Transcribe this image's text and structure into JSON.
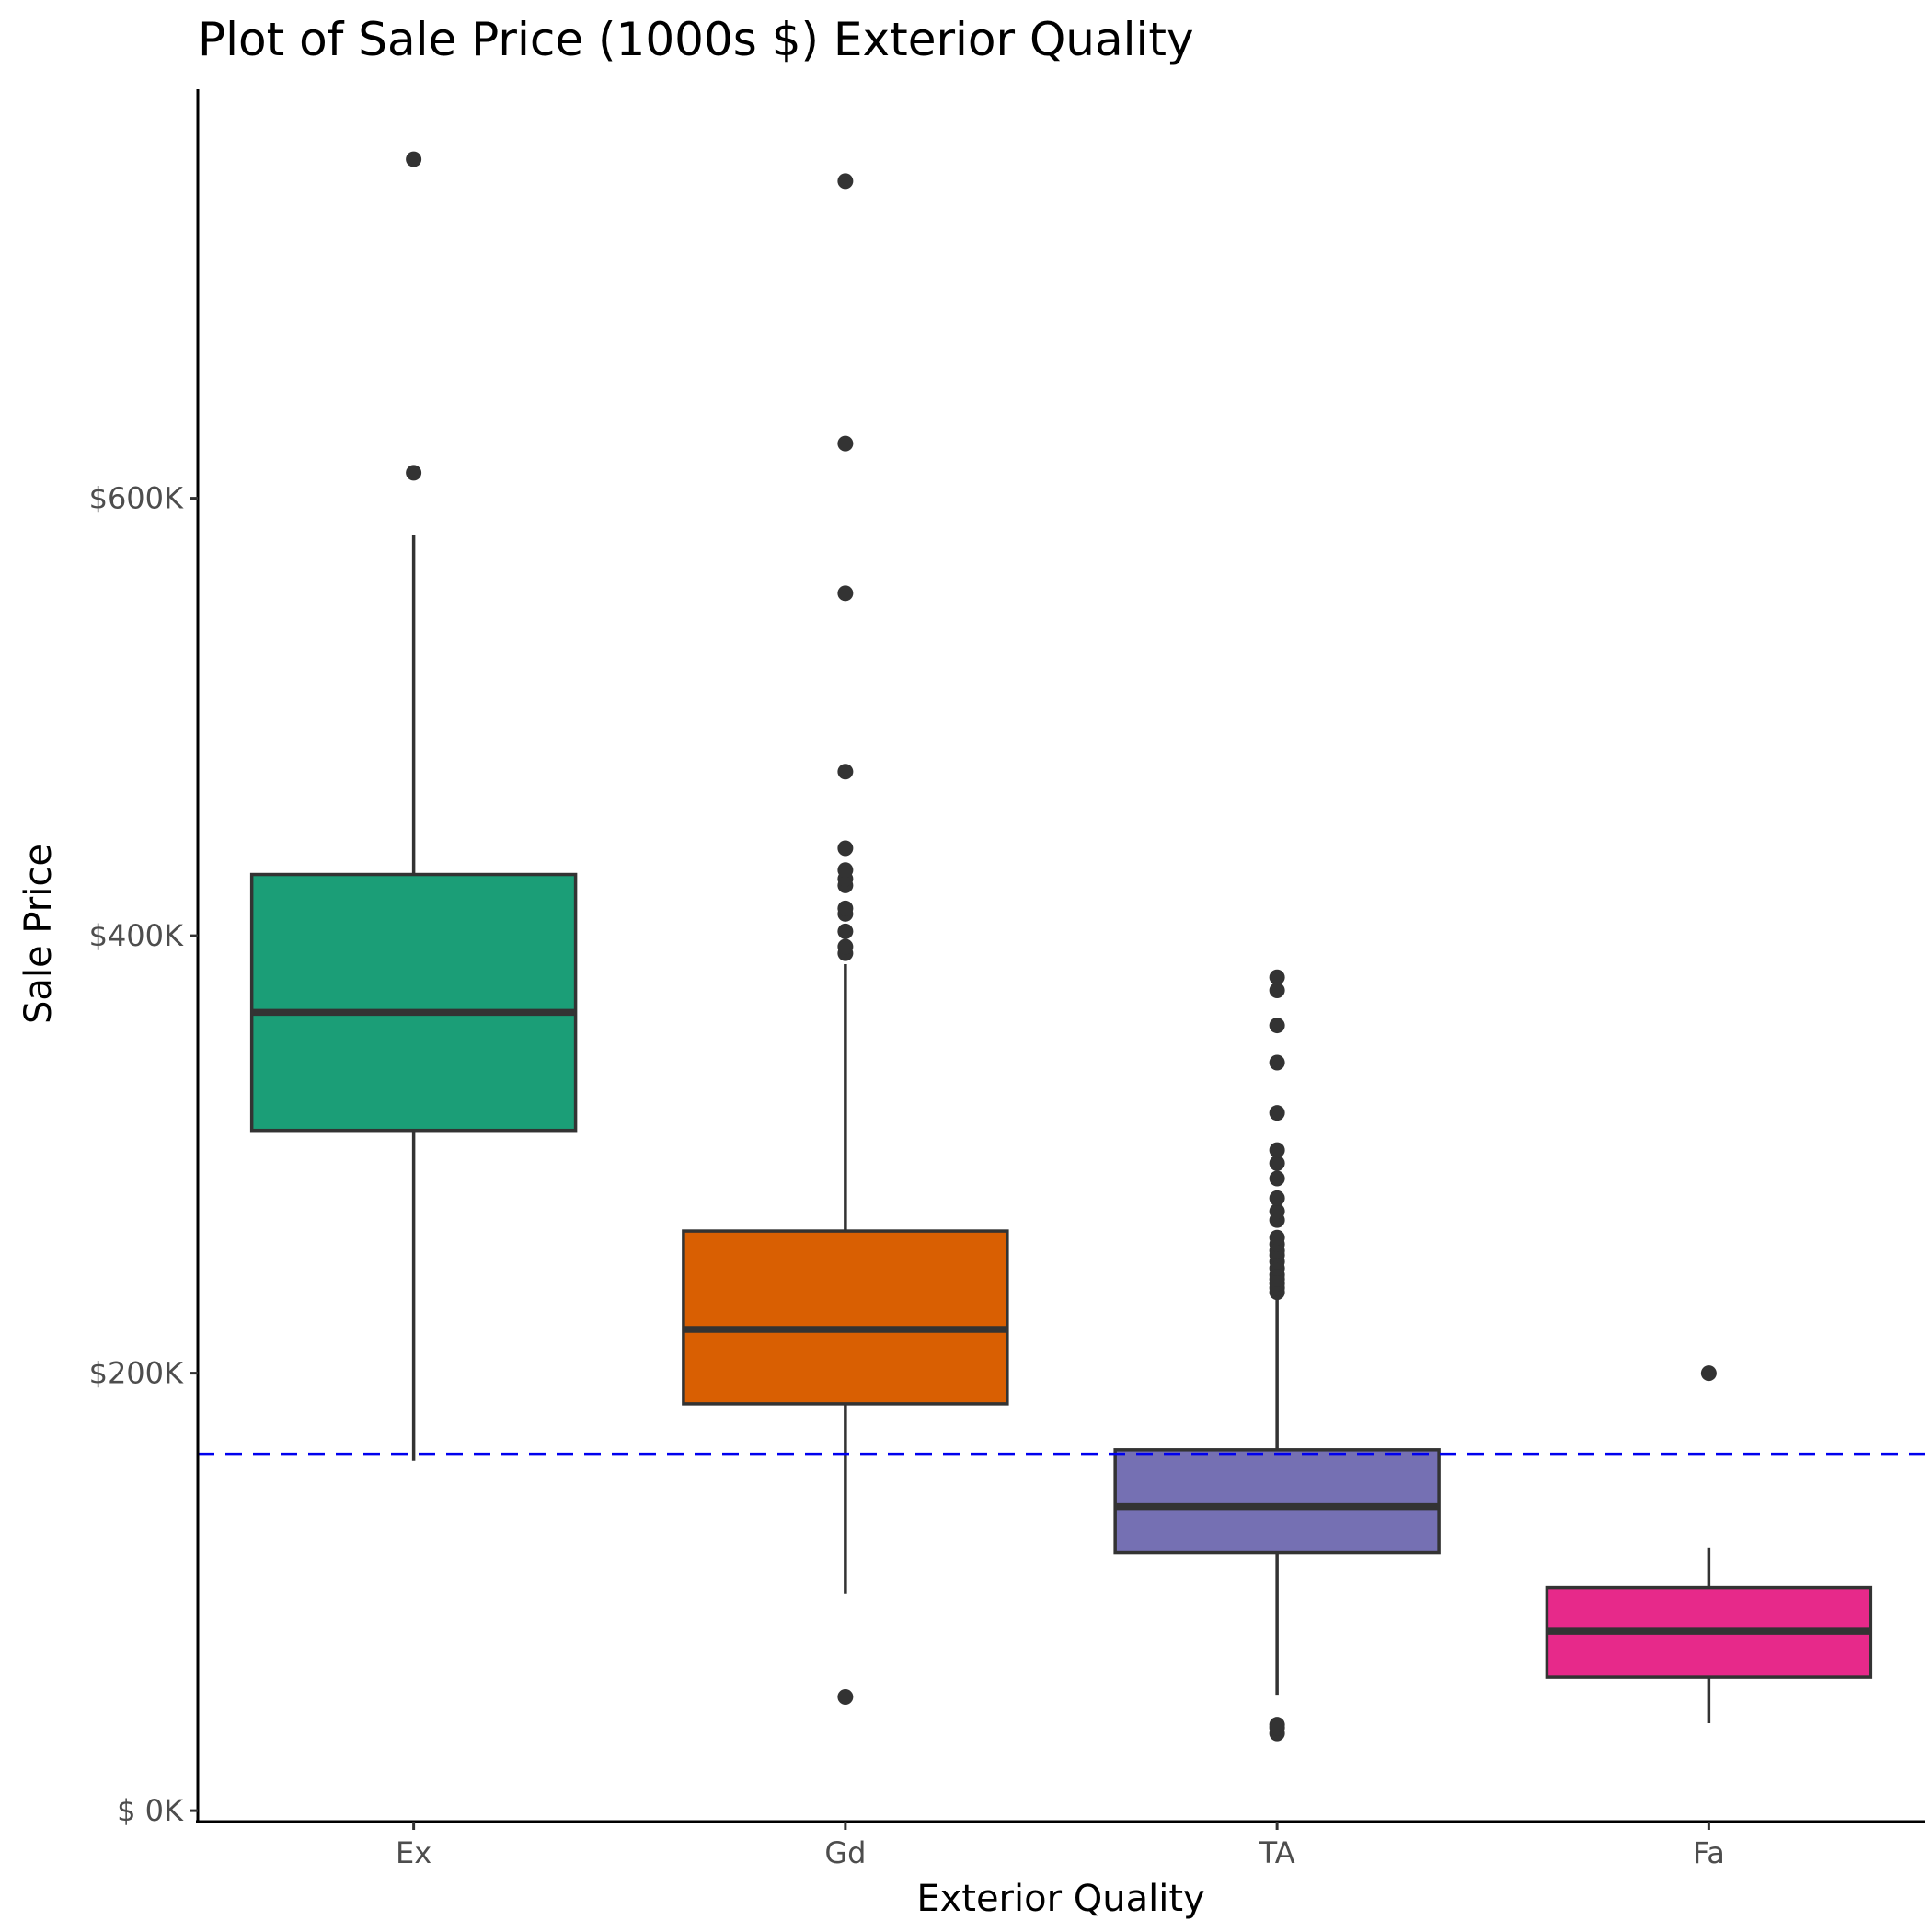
{
  "chart_data": {
    "type": "box",
    "title": "Plot of Sale Price (1000s $) Exterior Quality",
    "xlabel": "Exterior Quality",
    "ylabel": "Sale Price",
    "ylim": [
      -5000,
      787000
    ],
    "y_ticks": [
      {
        "value": 0,
        "label": "$  0K"
      },
      {
        "value": 200000,
        "label": "$200K"
      },
      {
        "value": 400000,
        "label": "$400K"
      },
      {
        "value": 600000,
        "label": "$600K"
      }
    ],
    "grid": false,
    "reference_line": {
      "value": 163000,
      "color": "#0000ee",
      "style": "dashed"
    },
    "boxes": [
      {
        "category": "Ex",
        "color": "#1b9e77",
        "whisker_low": 160000,
        "q1": 311000,
        "median": 365000,
        "q3": 428000,
        "whisker_high": 583000,
        "outliers": [
          611657,
          755000
        ]
      },
      {
        "category": "Gd",
        "color": "#d95f02",
        "whisker_low": 99000,
        "q1": 186000,
        "median": 220000,
        "q3": 265000,
        "whisker_high": 387000,
        "outliers": [
          52000,
          392000,
          395000,
          402000,
          410000,
          412500,
          423000,
          426000,
          430000,
          440000,
          475000,
          556581,
          625000,
          745000
        ]
      },
      {
        "category": "TA",
        "color": "#7570b3",
        "whisker_low": 53000,
        "q1": 118000,
        "median": 139000,
        "q3": 165000,
        "whisker_high": 235000,
        "outliers": [
          35311,
          37900,
          39300,
          237000,
          239000,
          241000,
          243000,
          245000,
          248000,
          251000,
          254000,
          256000,
          259000,
          262000,
          270000,
          274000,
          280000,
          289000,
          296000,
          302000,
          319000,
          342000,
          359000,
          375000,
          381000
        ]
      },
      {
        "category": "Fa",
        "color": "#e7298a",
        "whisker_low": 40000,
        "q1": 61000,
        "median": 82000,
        "q3": 102000,
        "whisker_high": 120000,
        "outliers": [
          200000
        ]
      }
    ]
  }
}
